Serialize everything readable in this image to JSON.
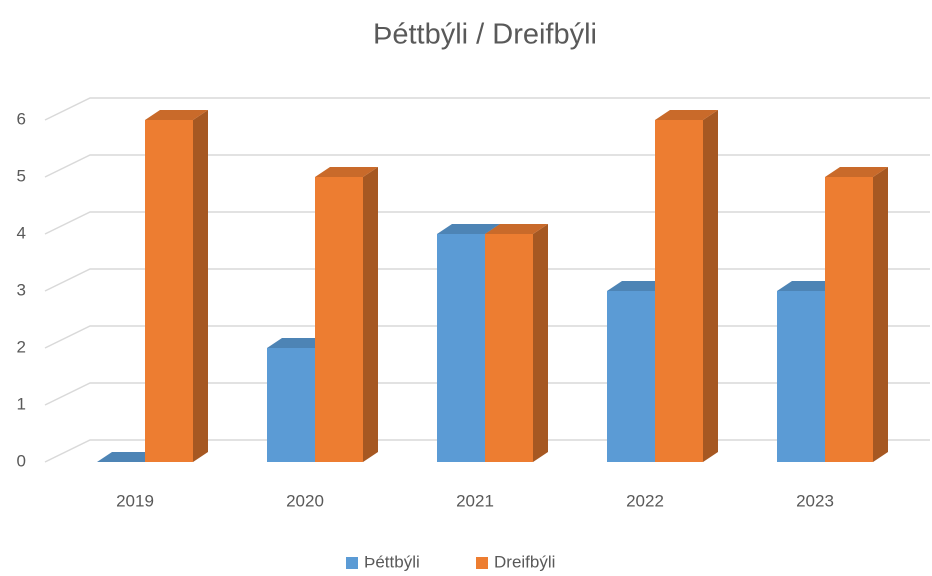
{
  "chart_data": {
    "type": "bar3d",
    "title": "Þéttbýli / Dreifbýli",
    "categories": [
      "2019",
      "2020",
      "2021",
      "2022",
      "2023"
    ],
    "series": [
      {
        "name": "Þéttbýli",
        "color": "#5b9bd5",
        "values": [
          0,
          2,
          4,
          3,
          3
        ]
      },
      {
        "name": "Dreifbýli",
        "color": "#ed7d31",
        "values": [
          6,
          5,
          4,
          6,
          5
        ]
      }
    ],
    "ylim": [
      0,
      6
    ],
    "yticks": [
      0,
      1,
      2,
      3,
      4,
      5,
      6
    ],
    "grid": true,
    "legend": "bottom"
  }
}
